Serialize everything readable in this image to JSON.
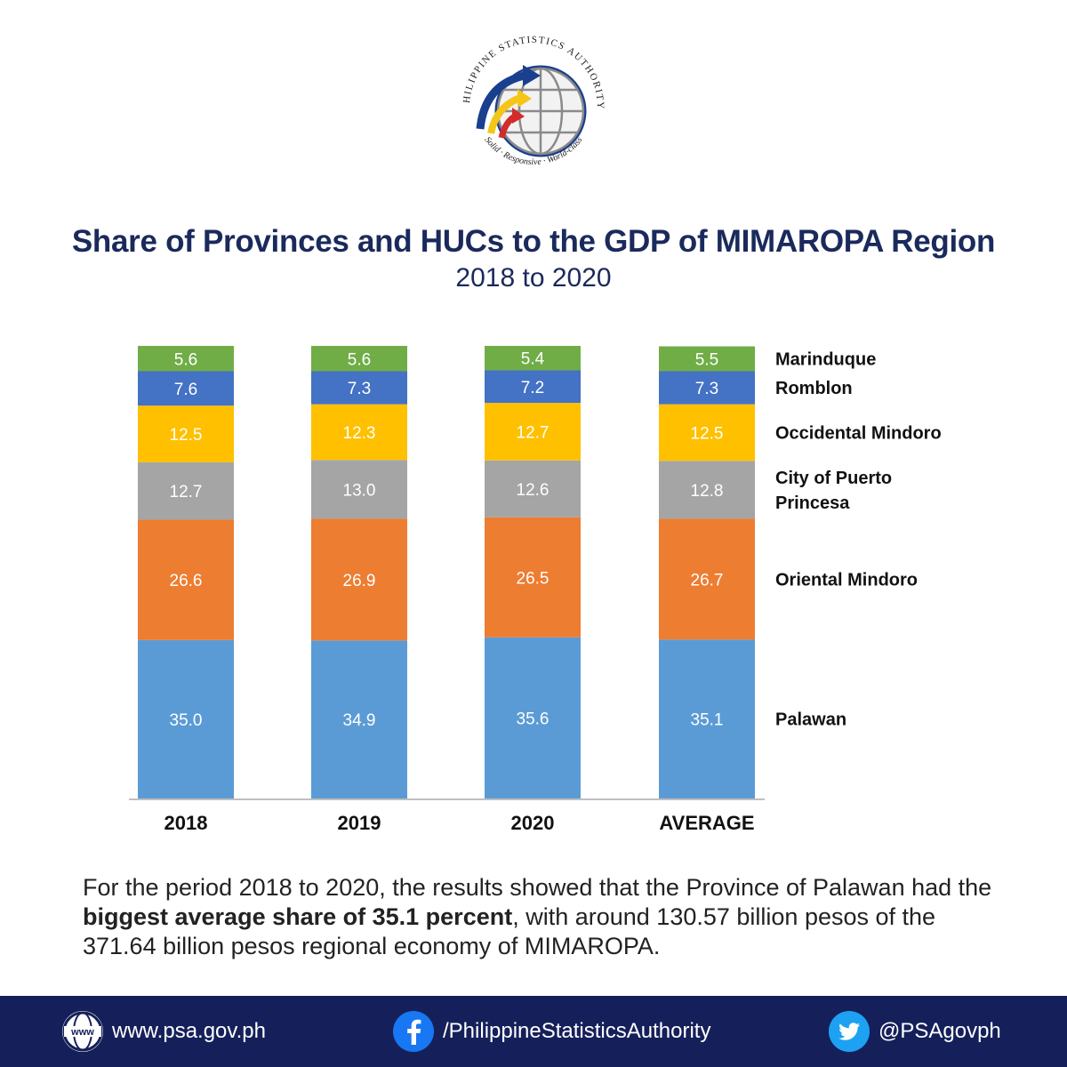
{
  "logo": {
    "ring_text": "PHILIPPINE STATISTICS AUTHORITY",
    "tagline": "Solid · Responsive · World-class"
  },
  "title": "Share of Provinces and HUCs to the GDP of MIMAROPA Region",
  "subtitle": "2018 to 2020",
  "chart_data": {
    "type": "bar",
    "stacked": true,
    "categories": [
      "2018",
      "2019",
      "2020",
      "AVERAGE"
    ],
    "ylim": [
      0,
      100
    ],
    "grid": false,
    "legend_position": "right",
    "series": [
      {
        "name": "Palawan",
        "color": "#5b9bd5",
        "values": [
          35.0,
          34.9,
          35.6,
          35.1
        ],
        "labels": [
          "35.0",
          "34.9",
          "35.6",
          "35.1"
        ]
      },
      {
        "name": "Oriental Mindoro",
        "color": "#ed7d31",
        "values": [
          26.6,
          26.9,
          26.5,
          26.7
        ],
        "labels": [
          "26.6",
          "26.9",
          "26.5",
          "26.7"
        ]
      },
      {
        "name": "City of Puerto Princesa",
        "color": "#a5a5a5",
        "values": [
          12.7,
          13.0,
          12.6,
          12.8
        ],
        "labels": [
          "12.7",
          "13.0",
          "12.6",
          "12.8"
        ]
      },
      {
        "name": "Occidental Mindoro",
        "color": "#ffc000",
        "values": [
          12.5,
          12.3,
          12.7,
          12.5
        ],
        "labels": [
          "12.5",
          "12.3",
          "12.7",
          "12.5"
        ]
      },
      {
        "name": "Romblon",
        "color": "#4472c4",
        "values": [
          7.6,
          7.3,
          7.2,
          7.3
        ],
        "labels": [
          "7.6",
          "7.3",
          "7.2",
          "7.3"
        ]
      },
      {
        "name": "Marinduque",
        "color": "#70ad47",
        "values": [
          5.6,
          5.6,
          5.4,
          5.5
        ],
        "labels": [
          "5.6",
          "5.6",
          "5.4",
          "5.5"
        ]
      }
    ]
  },
  "summary": {
    "part1": "For the period 2018 to 2020, the results showed that the Province of Palawan had the ",
    "bold": "biggest average share of 35.1 percent",
    "part2": ", with around 130.57 billion pesos of the 371.64 billion pesos regional economy of MIMAROPA."
  },
  "footer": {
    "website": "www.psa.gov.ph",
    "website_icon_text": "www",
    "facebook": "/PhilippineStatisticsAuthority",
    "twitter": "@PSAgovph"
  },
  "colors": {
    "navy": "#15205a",
    "title": "#1b2a5c"
  }
}
